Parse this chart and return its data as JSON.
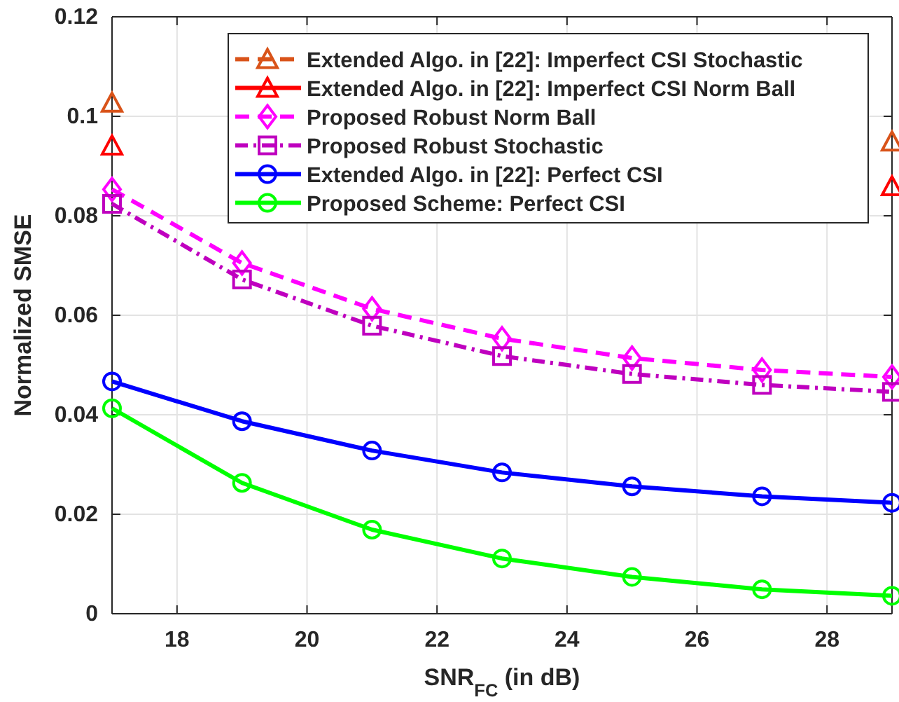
{
  "chart_data": {
    "type": "line",
    "xlabel": "SNR$_{FC}$ (in dB)",
    "ylabel": "Normalized SMSE",
    "x": [
      17,
      19,
      21,
      23,
      25,
      27,
      29
    ],
    "xlim": [
      17,
      29
    ],
    "xticks": [
      18,
      20,
      22,
      24,
      26,
      28
    ],
    "ylim": [
      0,
      0.12
    ],
    "yticks": [
      0,
      0.02,
      0.04,
      0.06,
      0.08,
      0.1,
      0.12
    ],
    "grid": true,
    "legend": "top right",
    "series": [
      {
        "name": "Extended Algo. in [22]: Imperfect CSI Stochastic",
        "color": "#d95319",
        "marker": "triangle",
        "line_style": "dashed",
        "values": [
          0.1027,
          null,
          null,
          null,
          null,
          null,
          0.0949
        ]
      },
      {
        "name": "Extended Algo. in [22]: Imperfect CSI Norm Ball",
        "color": "#ff0000",
        "marker": "triangle",
        "line_style": "solid",
        "values": [
          0.0941,
          null,
          null,
          null,
          null,
          null,
          0.0859
        ]
      },
      {
        "name": "Proposed Robust Norm Ball",
        "color": "#ff00ff",
        "marker": "diamond",
        "line_style": "dashed",
        "values": [
          0.0853,
          0.0705,
          0.0613,
          0.0553,
          0.0514,
          0.049,
          0.0476
        ]
      },
      {
        "name": "Proposed Robust Stochastic",
        "color": "#bf00bf",
        "marker": "square",
        "line_style": "dotted",
        "values": [
          0.0824,
          0.0672,
          0.0579,
          0.0518,
          0.0482,
          0.046,
          0.0446
        ]
      },
      {
        "name": "Extended Algo. in [22]: Perfect CSI",
        "color": "#0000ff",
        "marker": "circle",
        "line_style": "solid",
        "values": [
          0.0467,
          0.0387,
          0.0328,
          0.0284,
          0.0256,
          0.0236,
          0.0223
        ]
      },
      {
        "name": "Proposed Scheme: Perfect CSI",
        "color": "#00ff00",
        "marker": "circle",
        "line_style": "solid",
        "values": [
          0.0413,
          0.0263,
          0.0169,
          0.0111,
          0.0074,
          0.0049,
          0.0036
        ]
      }
    ]
  }
}
